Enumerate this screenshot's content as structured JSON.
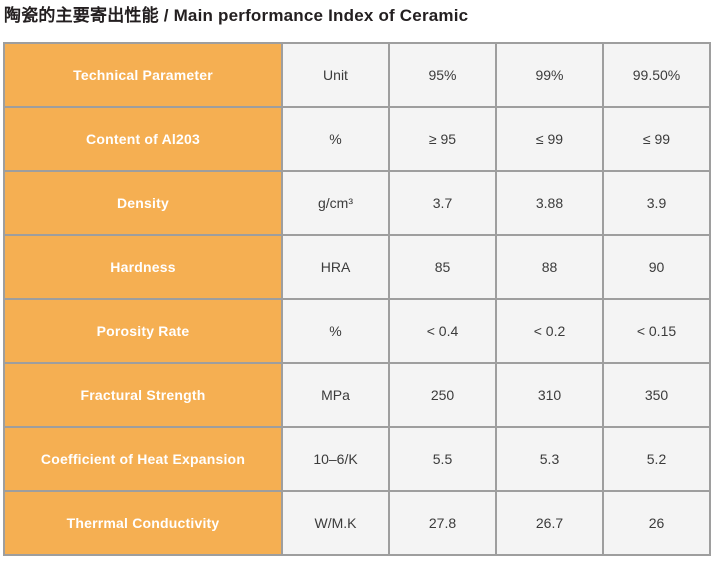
{
  "page_title": "陶瓷的主要寄出性能 / Main performance Index of Ceramic",
  "colors": {
    "accent_orange": "#f5af52",
    "cell_gray": "#f4f4f4",
    "border_gray": "#9e9e9e",
    "title_text": "#231f20",
    "param_text": "#ffffff",
    "value_text": "#3b3b3b"
  },
  "table": {
    "rows": [
      {
        "parameter": "Technical Parameter",
        "values": [
          "Unit",
          "95%",
          "99%",
          "99.50%"
        ]
      },
      {
        "parameter": "Content of Al203",
        "values": [
          "%",
          "≥ 95",
          "≤ 99",
          "≤ 99"
        ]
      },
      {
        "parameter": "Density",
        "values": [
          "g/cm³",
          "3.7",
          "3.88",
          "3.9"
        ]
      },
      {
        "parameter": "Hardness",
        "values": [
          "HRA",
          "85",
          "88",
          "90"
        ]
      },
      {
        "parameter": "Porosity Rate",
        "values": [
          "%",
          "< 0.4",
          "< 0.2",
          "< 0.15"
        ]
      },
      {
        "parameter": "Fractural Strength",
        "values": [
          "MPa",
          "250",
          "310",
          "350"
        ]
      },
      {
        "parameter": "Coefficient of Heat Expansion",
        "values": [
          "10–6/K",
          "5.5",
          "5.3",
          "5.2"
        ]
      },
      {
        "parameter": "Therrmal Conductivity",
        "values": [
          "W/M.K",
          "27.8",
          "26.7",
          "26"
        ]
      }
    ]
  }
}
